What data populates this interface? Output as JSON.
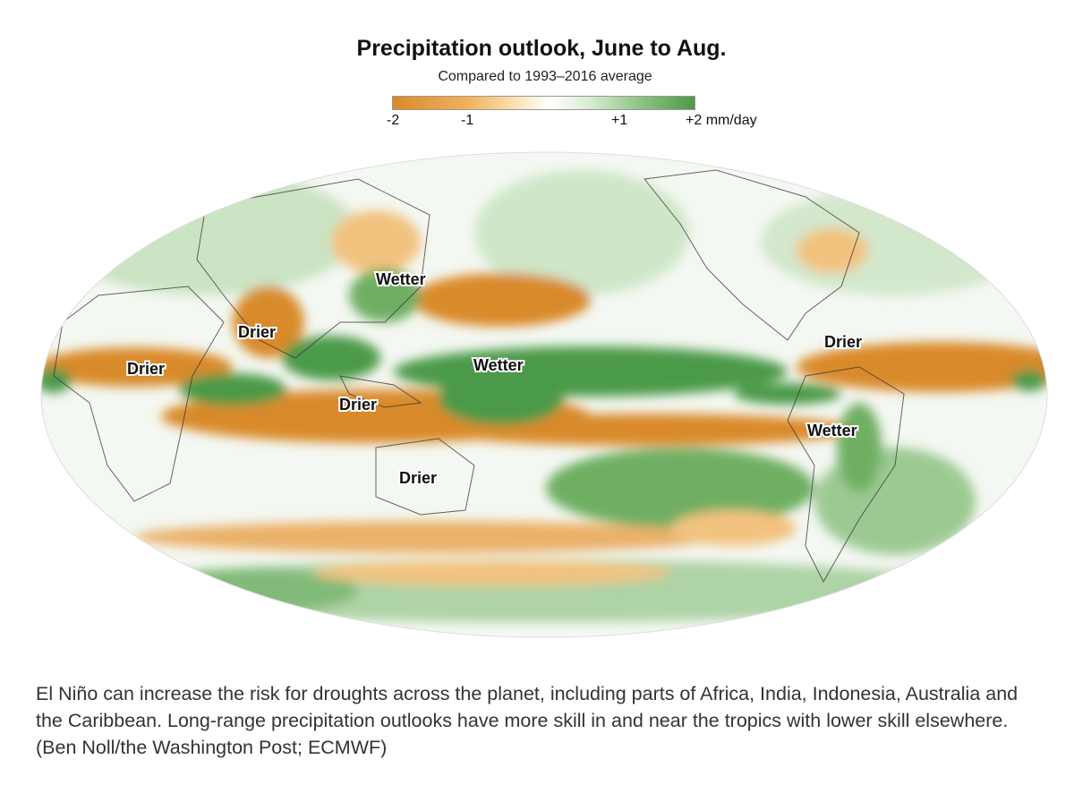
{
  "title": "Precipitation outlook, June to Aug.",
  "subtitle": "Compared to 1993–2016 average",
  "legend": {
    "ticks": [
      "-2",
      "-1",
      "+1",
      "+2 mm/day"
    ],
    "range": [
      -2,
      2
    ],
    "unit": "mm/day",
    "colors": {
      "dry": "#d98a2b",
      "neutral": "#ffffff",
      "wet": "#4c9a48"
    }
  },
  "map": {
    "projection": "Robinson, Pacific-centered",
    "labels": [
      {
        "text": "Wetter",
        "region": "East Asia"
      },
      {
        "text": "Drier",
        "region": "India"
      },
      {
        "text": "Drier",
        "region": "East Africa"
      },
      {
        "text": "Wetter",
        "region": "Central Pacific"
      },
      {
        "text": "Drier",
        "region": "Indonesia"
      },
      {
        "text": "Drier",
        "region": "Caribbean"
      },
      {
        "text": "Wetter",
        "region": "Western South America"
      },
      {
        "text": "Drier",
        "region": "Australia"
      }
    ]
  },
  "caption": "El Niño can increase the risk for droughts across the planet, including parts of Africa, India, Indonesia, Australia and the Caribbean. Long-range precipitation outlooks have more skill in and near the tropics with lower skill elsewhere. (Ben Noll/the Washington Post; ECMWF)"
}
